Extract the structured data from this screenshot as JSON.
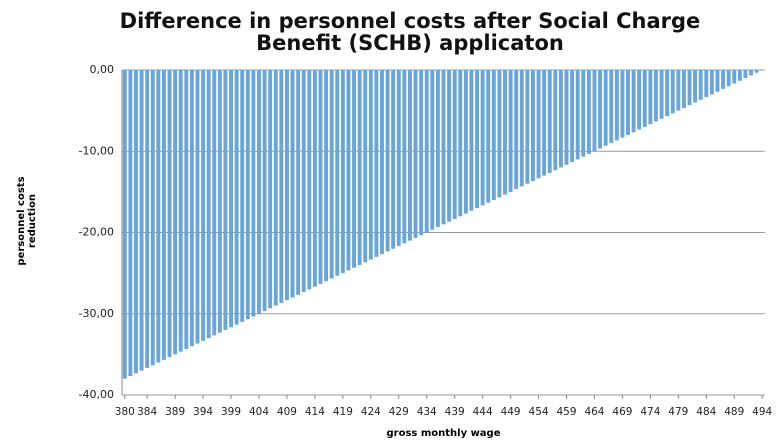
{
  "chart_data": {
    "type": "bar",
    "title": "Difference in personnel costs after Social Charge Benefit (SCHB) applicaton",
    "x_label": "gross monthly wage",
    "y_label": "personnel costs reduction",
    "color": "#6aa5d9",
    "grid": true,
    "x": [
      380,
      381,
      382,
      383,
      384,
      385,
      386,
      387,
      388,
      389,
      390,
      391,
      392,
      393,
      394,
      395,
      396,
      397,
      398,
      399,
      400,
      401,
      402,
      403,
      404,
      405,
      406,
      407,
      408,
      409,
      410,
      411,
      412,
      413,
      414,
      415,
      416,
      417,
      418,
      419,
      420,
      421,
      422,
      423,
      424,
      425,
      426,
      427,
      428,
      429,
      430,
      431,
      432,
      433,
      434,
      435,
      436,
      437,
      438,
      439,
      440,
      441,
      442,
      443,
      444,
      445,
      446,
      447,
      448,
      449,
      450,
      451,
      452,
      453,
      454,
      455,
      456,
      457,
      458,
      459,
      460,
      461,
      462,
      463,
      464,
      465,
      466,
      467,
      468,
      469,
      470,
      471,
      472,
      473,
      474,
      475,
      476,
      477,
      478,
      479,
      480,
      481,
      482,
      483,
      484,
      485,
      486,
      487,
      488,
      489,
      490,
      491,
      492,
      493,
      494
    ],
    "values": [
      -38,
      -37.67,
      -37.33,
      -37,
      -36.67,
      -36.33,
      -36,
      -35.67,
      -35.33,
      -35,
      -34.67,
      -34.33,
      -34,
      -33.67,
      -33.33,
      -33,
      -32.67,
      -32.33,
      -32,
      -31.67,
      -31.33,
      -31,
      -30.67,
      -30.33,
      -30,
      -29.67,
      -29.33,
      -29,
      -28.67,
      -28.33,
      -28,
      -27.67,
      -27.33,
      -27,
      -26.67,
      -26.33,
      -26,
      -25.67,
      -25.33,
      -25,
      -24.67,
      -24.33,
      -24,
      -23.67,
      -23.33,
      -23,
      -22.67,
      -22.33,
      -22,
      -21.67,
      -21.33,
      -21,
      -20.67,
      -20.33,
      -20,
      -19.67,
      -19.33,
      -19,
      -18.67,
      -18.33,
      -18,
      -17.67,
      -17.33,
      -17,
      -16.67,
      -16.33,
      -16,
      -15.67,
      -15.33,
      -15,
      -14.67,
      -14.33,
      -14,
      -13.67,
      -13.33,
      -13,
      -12.67,
      -12.33,
      -12,
      -11.67,
      -11.33,
      -11,
      -10.67,
      -10.33,
      -10,
      -9.67,
      -9.33,
      -9,
      -8.67,
      -8.33,
      -8,
      -7.67,
      -7.33,
      -7,
      -6.67,
      -6.33,
      -6,
      -5.67,
      -5.33,
      -5,
      -4.67,
      -4.33,
      -4,
      -3.67,
      -3.33,
      -3,
      -2.67,
      -2.33,
      -2,
      -1.67,
      -1.33,
      -1,
      -0.67,
      -0.33,
      0
    ],
    "xlim": [
      379.5,
      494.5
    ],
    "xticks": [
      380,
      384,
      389,
      394,
      399,
      404,
      409,
      414,
      419,
      424,
      429,
      434,
      439,
      444,
      449,
      454,
      459,
      464,
      469,
      474,
      479,
      484,
      489,
      494
    ],
    "ylim": [
      -40,
      0
    ],
    "yticks": [
      {
        "value": 0,
        "label": "0,00"
      },
      {
        "value": -10,
        "label": "-10,00"
      },
      {
        "value": -20,
        "label": "-20,00"
      },
      {
        "value": -30,
        "label": "-30,00"
      },
      {
        "value": -40,
        "label": "-40,00"
      }
    ]
  }
}
